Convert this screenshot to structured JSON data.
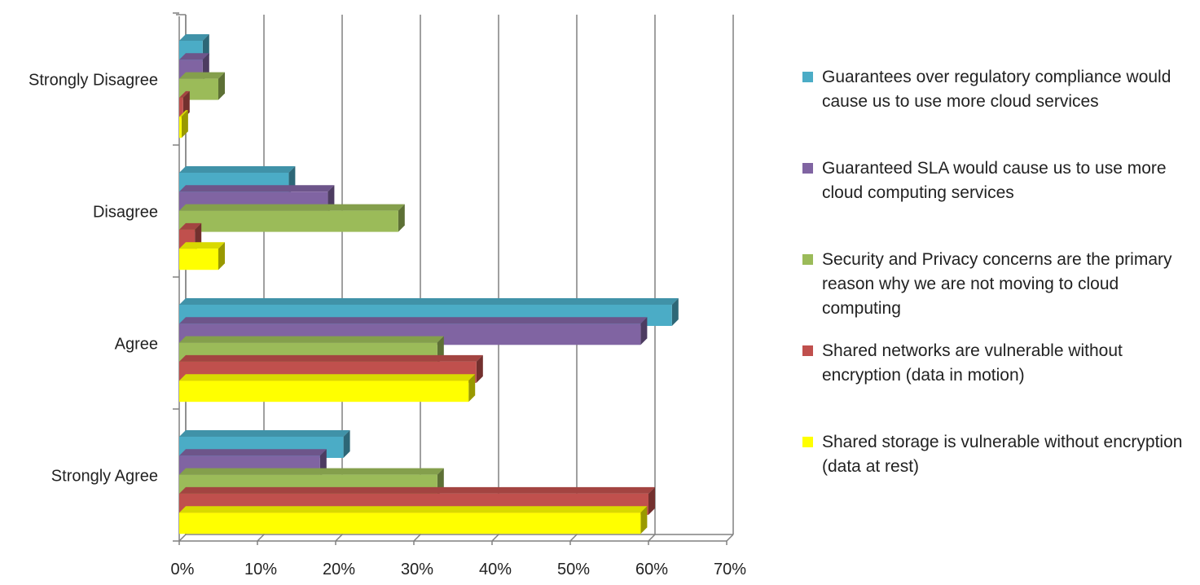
{
  "chart_data": {
    "type": "bar",
    "orientation": "horizontal",
    "style": "3d",
    "categories": [
      "Strongly Disagree",
      "Disagree",
      "Agree",
      "Strongly Agree"
    ],
    "series": [
      {
        "name": "Guarantees over regulatory compliance would cause us to use more cloud services",
        "color": "#4bacc6",
        "values": [
          3,
          14,
          63,
          21
        ]
      },
      {
        "name": "Guaranteed SLA would cause us to use more cloud computing services",
        "color": "#8064a2",
        "values": [
          3,
          19,
          59,
          18
        ]
      },
      {
        "name": "Security and Privacy concerns are the primary reason why we are not moving to cloud computing",
        "color": "#9bbb59",
        "values": [
          5,
          28,
          33,
          33
        ]
      },
      {
        "name": "Shared networks are vulnerable without encryption (data in motion)",
        "color": "#c0504d",
        "values": [
          0.5,
          2,
          38,
          60
        ]
      },
      {
        "name": "Shared storage is vulnerable without encryption (data at rest)",
        "color": "#ffff00",
        "values": [
          0.3,
          5,
          37,
          59
        ]
      }
    ],
    "xlim": [
      0,
      70
    ],
    "xticks": [
      "0%",
      "10%",
      "20%",
      "30%",
      "40%",
      "50%",
      "60%",
      "70%"
    ],
    "grid": true,
    "legend_position": "right",
    "title": "",
    "xlabel": "",
    "ylabel": ""
  }
}
